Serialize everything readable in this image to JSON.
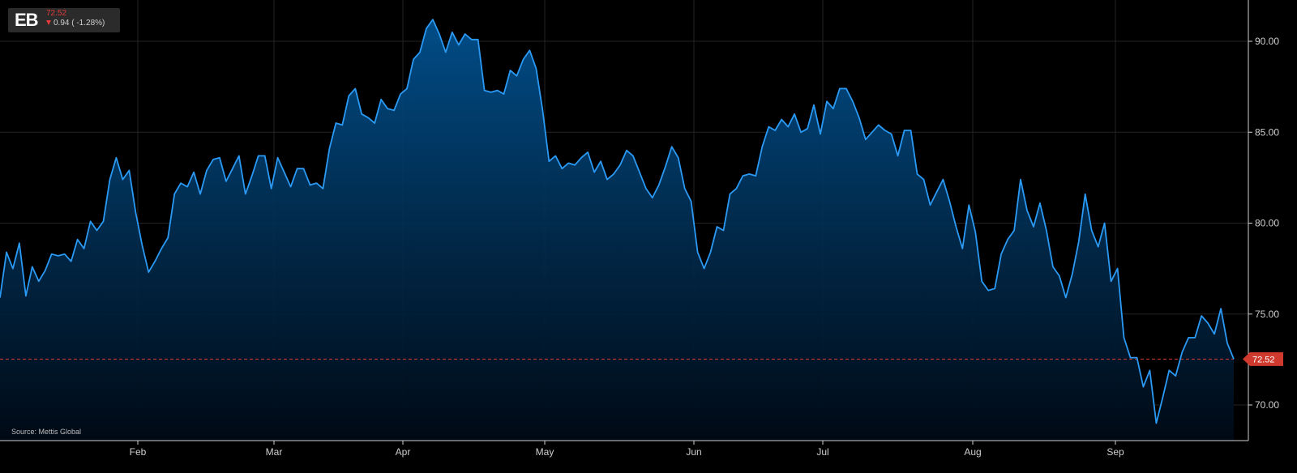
{
  "ticker": {
    "symbol": "EB",
    "price": "72.52",
    "change": "0.94 ( -1.28%)",
    "direction": "down",
    "colors": {
      "down": "#e03a3a",
      "panel": "#2b2b2b"
    }
  },
  "source": "Source: Mettis Global",
  "chart_data": {
    "type": "area",
    "title": "",
    "xlabel": "",
    "ylabel": "",
    "ylim": [
      68.0,
      92.3
    ],
    "yticks": [
      "70.00",
      "75.00",
      "80.00",
      "85.00",
      "90.00"
    ],
    "xticks": [
      "Feb",
      "Mar",
      "Apr",
      "May",
      "Jun",
      "Jul",
      "Aug",
      "Sep"
    ],
    "grid": true,
    "last_value": 72.52,
    "last_value_label": "72.52",
    "colors": {
      "line": "#2a9af5",
      "area_top": "#014f8c",
      "reference": "#d03a2e",
      "grid": "#242424",
      "axis_text": "#cfcfcf"
    },
    "series": [
      {
        "values": [
          75.9,
          78.4,
          77.5,
          78.9,
          76.0,
          77.6,
          76.8,
          77.4,
          78.3,
          78.2,
          78.3,
          77.9,
          79.1,
          78.6,
          80.1,
          79.6,
          80.1,
          82.4,
          83.6,
          82.4,
          82.9,
          80.6,
          78.8,
          77.3,
          77.9,
          78.6,
          79.2,
          81.6,
          82.2,
          82.0,
          82.8,
          81.6,
          82.9,
          83.5,
          83.6,
          82.3,
          83.0,
          83.7,
          81.6,
          82.6,
          83.7,
          83.7,
          81.9,
          83.6,
          82.8,
          82.0,
          83.0,
          83.0,
          82.1,
          82.2,
          81.9,
          84.1,
          85.5,
          85.4,
          87.0,
          87.4,
          86.0,
          85.8,
          85.5,
          86.8,
          86.3,
          86.2,
          87.1,
          87.4,
          89.0,
          89.4,
          90.7,
          91.2,
          90.4,
          89.4,
          90.5,
          89.8,
          90.4,
          90.1,
          90.1,
          87.3,
          87.2,
          87.3,
          87.1,
          88.4,
          88.1,
          89.0,
          89.5,
          88.5,
          86.2,
          83.4,
          83.7,
          83.0,
          83.3,
          83.2,
          83.6,
          83.9,
          82.8,
          83.4,
          82.4,
          82.7,
          83.2,
          84.0,
          83.7,
          82.8,
          81.9,
          81.4,
          82.1,
          83.1,
          84.2,
          83.6,
          81.9,
          81.2,
          78.4,
          77.5,
          78.4,
          79.8,
          79.6,
          81.6,
          81.9,
          82.6,
          82.7,
          82.6,
          84.2,
          85.3,
          85.1,
          85.7,
          85.3,
          86.0,
          85.0,
          85.2,
          86.5,
          84.9,
          86.7,
          86.3,
          87.4,
          87.4,
          86.7,
          85.8,
          84.6,
          85.0,
          85.4,
          85.1,
          84.9,
          83.7,
          85.1,
          85.1,
          82.7,
          82.4,
          81.0,
          81.7,
          82.4,
          81.2,
          79.8,
          78.6,
          81.0,
          79.5,
          76.8,
          76.3,
          76.4,
          78.3,
          79.1,
          79.6,
          82.4,
          80.7,
          79.8,
          81.1,
          79.6,
          77.6,
          77.1,
          75.9,
          77.2,
          79.0,
          81.6,
          79.6,
          78.7,
          80.0,
          76.8,
          77.5,
          73.7,
          72.6,
          72.6,
          71.0,
          71.9,
          69.0,
          70.4,
          71.9,
          71.6,
          72.9,
          73.7,
          73.7,
          74.9,
          74.5,
          73.9,
          75.3,
          73.4,
          72.52
        ]
      }
    ]
  }
}
